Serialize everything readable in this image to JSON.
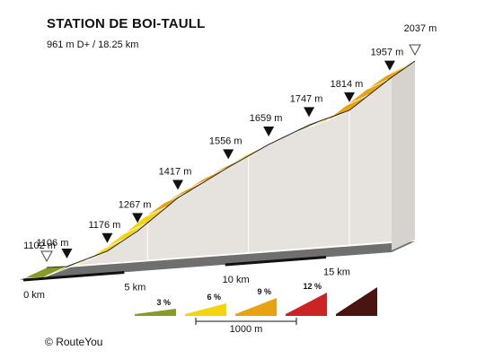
{
  "header": {
    "title": "STATION DE BOI-TAULL",
    "subtitle": "961 m D+ / 18.25 km"
  },
  "credit": {
    "copyright_symbol": "©",
    "brand": "RouteYou"
  },
  "chart_data": {
    "type": "area",
    "title": "STATION DE BOI-TAULL",
    "subtitle": "961 m D+ / 18.25 km",
    "xlabel": "",
    "ylabel": "",
    "x_unit": "km",
    "y_unit": "m",
    "xlim": [
      0,
      18.25
    ],
    "start_elevation": 1102,
    "summit_elevation": 2037,
    "markers": [
      {
        "km": 0,
        "elevation": 1102,
        "label": "1102 m",
        "symbol": "open-triangle"
      },
      {
        "km": 1,
        "elevation": 1106,
        "label": "1106 m",
        "symbol": "filled-triangle"
      },
      {
        "km": 3,
        "elevation": 1176,
        "label": "1176 m",
        "symbol": "filled-triangle"
      },
      {
        "km": 4.5,
        "elevation": 1267,
        "label": "1267 m",
        "symbol": "filled-triangle"
      },
      {
        "km": 6.5,
        "elevation": 1417,
        "label": "1417 m",
        "symbol": "filled-triangle"
      },
      {
        "km": 9,
        "elevation": 1556,
        "label": "1556 m",
        "symbol": "filled-triangle"
      },
      {
        "km": 11,
        "elevation": 1659,
        "label": "1659 m",
        "symbol": "filled-triangle"
      },
      {
        "km": 13,
        "elevation": 1747,
        "label": "1747 m",
        "symbol": "filled-triangle"
      },
      {
        "km": 15,
        "elevation": 1814,
        "label": "1814 m",
        "symbol": "filled-triangle"
      },
      {
        "km": 17,
        "elevation": 1957,
        "label": "1957 m",
        "symbol": "filled-triangle"
      },
      {
        "km": 18.25,
        "elevation": 2037,
        "label": "2037 m",
        "symbol": "open-triangle"
      }
    ],
    "segments": [
      {
        "from_km": 0,
        "to_km": 1,
        "color": "#8a9a28"
      },
      {
        "from_km": 1,
        "to_km": 2,
        "color": "#8a9a28"
      },
      {
        "from_km": 2,
        "to_km": 3,
        "color": "#f5d40e"
      },
      {
        "from_km": 3,
        "to_km": 4,
        "color": "#f5d40e"
      },
      {
        "from_km": 4,
        "to_km": 5,
        "color": "#f5d40e"
      },
      {
        "from_km": 5,
        "to_km": 6,
        "color": "#f5d40e"
      },
      {
        "from_km": 6,
        "to_km": 7,
        "color": "#eaa310"
      },
      {
        "from_km": 7,
        "to_km": 8,
        "color": "#eaa310"
      },
      {
        "from_km": 8,
        "to_km": 9,
        "color": "#eaa310"
      },
      {
        "from_km": 9,
        "to_km": 10,
        "color": "#eaa310"
      },
      {
        "from_km": 10,
        "to_km": 11,
        "color": "#f5d40e"
      },
      {
        "from_km": 11,
        "to_km": 12,
        "color": "#f5d40e"
      },
      {
        "from_km": 12,
        "to_km": 13,
        "color": "#f5d40e"
      },
      {
        "from_km": 13,
        "to_km": 14,
        "color": "#8a9a28"
      },
      {
        "from_km": 14,
        "to_km": 15,
        "color": "#f5d40e"
      },
      {
        "from_km": 15,
        "to_km": 16,
        "color": "#eaa310"
      },
      {
        "from_km": 16,
        "to_km": 17,
        "color": "#eaa310"
      },
      {
        "from_km": 17,
        "to_km": 18,
        "color": "#eaa310"
      },
      {
        "from_km": 18,
        "to_km": 18.25,
        "color": "#f5d40e"
      }
    ],
    "x_ticks": [
      {
        "km": 0,
        "label": "0 km"
      },
      {
        "km": 5,
        "label": "5 km"
      },
      {
        "km": 10,
        "label": "10 km"
      },
      {
        "km": 15,
        "label": "15 km"
      }
    ],
    "legend": {
      "placement": "bottom-center",
      "scale_label": "1000 m",
      "items": [
        {
          "label": "3 %",
          "color": "#8a9a28"
        },
        {
          "label": "6 %",
          "color": "#f5d40e"
        },
        {
          "label": "9 %",
          "color": "#eaa310"
        },
        {
          "label": "12 %",
          "color": "#cc2424"
        },
        {
          "label": "",
          "color": "#4a1410"
        }
      ]
    }
  }
}
